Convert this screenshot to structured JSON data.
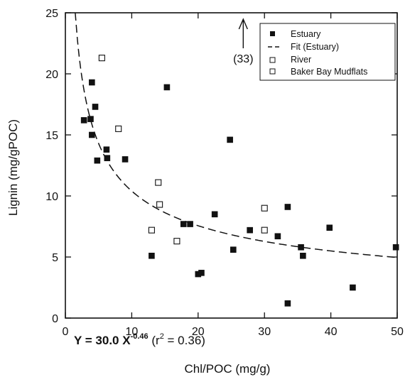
{
  "chart_data": {
    "type": "scatter",
    "xlabel": "Chl/POC (mg/g)",
    "ylabel": "Lignin (mg/gPOC)",
    "xlim": [
      0,
      50
    ],
    "ylim": [
      0,
      25
    ],
    "xticks": [
      0,
      10,
      20,
      30,
      40,
      50
    ],
    "yticks": [
      0,
      5,
      10,
      15,
      20,
      25
    ],
    "grid": false,
    "legend_position": "top-right",
    "series": [
      {
        "name": "Estuary",
        "marker": "filled-square",
        "color": "#111111",
        "points": [
          {
            "x": 2.8,
            "y": 16.2
          },
          {
            "x": 3.8,
            "y": 16.3
          },
          {
            "x": 4.0,
            "y": 19.3
          },
          {
            "x": 4.0,
            "y": 15.0
          },
          {
            "x": 4.5,
            "y": 17.3
          },
          {
            "x": 4.8,
            "y": 12.9
          },
          {
            "x": 6.2,
            "y": 13.8
          },
          {
            "x": 6.3,
            "y": 13.1
          },
          {
            "x": 9.0,
            "y": 13.0
          },
          {
            "x": 13.0,
            "y": 5.1
          },
          {
            "x": 15.3,
            "y": 18.9
          },
          {
            "x": 17.8,
            "y": 7.7
          },
          {
            "x": 18.8,
            "y": 7.7
          },
          {
            "x": 20.0,
            "y": 3.6
          },
          {
            "x": 20.5,
            "y": 3.7
          },
          {
            "x": 22.5,
            "y": 8.5
          },
          {
            "x": 24.8,
            "y": 14.6
          },
          {
            "x": 25.3,
            "y": 5.6
          },
          {
            "x": 27.8,
            "y": 7.2
          },
          {
            "x": 32.0,
            "y": 6.7
          },
          {
            "x": 33.5,
            "y": 9.1
          },
          {
            "x": 33.5,
            "y": 1.2
          },
          {
            "x": 35.5,
            "y": 5.8
          },
          {
            "x": 35.8,
            "y": 5.1
          },
          {
            "x": 39.8,
            "y": 7.4
          },
          {
            "x": 43.3,
            "y": 2.5
          },
          {
            "x": 49.8,
            "y": 5.8
          }
        ]
      },
      {
        "name": "Fit (Estuary)",
        "type": "line",
        "style": "dashed",
        "color": "#111111",
        "equation": {
          "a": 30.0,
          "b": -0.46
        },
        "x_range": [
          1.8,
          50
        ]
      },
      {
        "name": "River",
        "marker": "open-square",
        "color": "#111111",
        "points": [
          {
            "x": 5.5,
            "y": 21.3
          },
          {
            "x": 8.0,
            "y": 15.5
          },
          {
            "x": 13.0,
            "y": 7.2
          },
          {
            "x": 14.0,
            "y": 11.1
          },
          {
            "x": 14.2,
            "y": 9.3
          },
          {
            "x": 16.8,
            "y": 6.3
          },
          {
            "x": 30.0,
            "y": 9.0
          },
          {
            "x": 30.0,
            "y": 7.2
          }
        ]
      },
      {
        "name": "Baker Bay Mudflats",
        "marker": "open-square",
        "color": "#111111",
        "points": []
      }
    ],
    "annotations": {
      "offscale_label": "(33)",
      "offscale_x": 26.8,
      "equation": {
        "lhs": "Y = 30.0 X",
        "exponent": "-0.46",
        "r_open": " (r",
        "r_exp": "2",
        "r_close": " = 0.36)"
      }
    }
  }
}
